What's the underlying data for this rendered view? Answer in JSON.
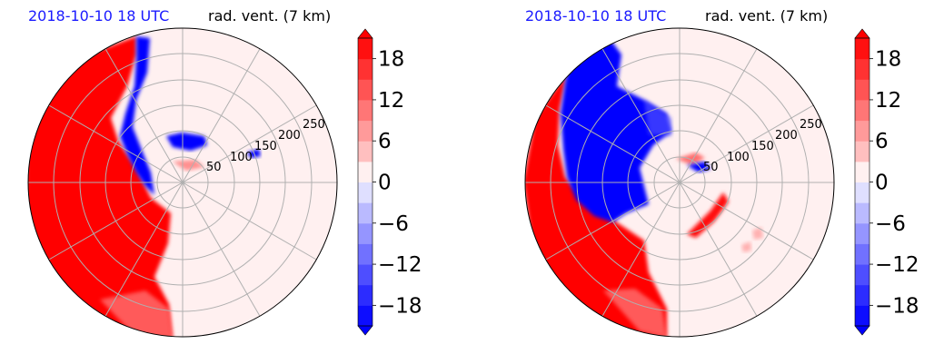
{
  "panels": [
    {
      "title_left": "2018-10-10 18 UTC",
      "title_right": "rad. vent. (7 km)"
    },
    {
      "title_left": "2018-10-10 18 UTC",
      "title_right": "rad. vent. (7 km)"
    }
  ],
  "chart_data": [
    {
      "type": "heatmap",
      "projection": "polar",
      "title": "2018-10-10 18 UTC",
      "subtitle": "rad. vent. (7 km)",
      "radial_ticks": [
        50,
        100,
        150,
        200,
        250
      ],
      "angular_grid_step_deg": 30,
      "grid": true,
      "colorbar": {
        "ticks": [
          -18,
          -12,
          -6,
          0,
          6,
          12,
          18
        ],
        "vmin": -21,
        "vmax": 21,
        "colors": {
          "negative": "#0000ff",
          "neutral": "#ffffff",
          "positive": "#ff0000"
        },
        "extend": "both"
      }
    },
    {
      "type": "heatmap",
      "projection": "polar",
      "title": "2018-10-10 18 UTC",
      "subtitle": "rad. vent. (7 km)",
      "radial_ticks": [
        50,
        100,
        150,
        200,
        250
      ],
      "angular_grid_step_deg": 30,
      "grid": true,
      "colorbar": {
        "ticks": [
          -18,
          -12,
          -6,
          0,
          6,
          12,
          18
        ],
        "vmin": -21,
        "vmax": 21,
        "colors": {
          "negative": "#0000ff",
          "neutral": "#ffffff",
          "positive": "#ff0000"
        },
        "extend": "both"
      }
    }
  ]
}
